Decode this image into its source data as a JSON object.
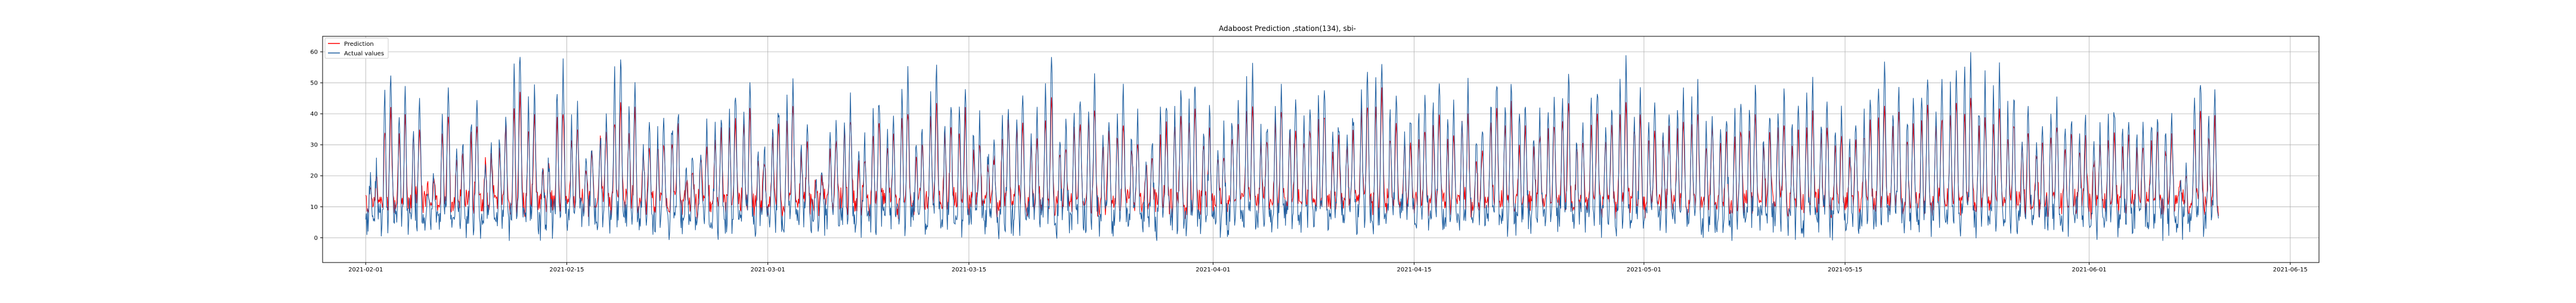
{
  "chart_data": {
    "type": "line",
    "title": "Adaboost Prediction ,station(134), sbi-",
    "xlabel": "",
    "ylabel": "",
    "x_range": [
      "2021-01-29",
      "2021-06-17"
    ],
    "x_start": "2021-02-01",
    "x_end": "2021-06-10",
    "ylim": [
      -8,
      65
    ],
    "grid": true,
    "legend_position": "top-left",
    "x_ticks": [
      "2021-02-01",
      "2021-02-15",
      "2021-03-01",
      "2021-03-15",
      "2021-04-01",
      "2021-04-15",
      "2021-05-01",
      "2021-05-15",
      "2021-06-01",
      "2021-06-15"
    ],
    "y_ticks": [
      0,
      10,
      20,
      30,
      40,
      50,
      60
    ],
    "series": [
      {
        "name": "Prediction",
        "color": "#ff0000"
      },
      {
        "name": "Actual values",
        "color": "#1f5fa0"
      }
    ],
    "daily_profile": {
      "description_values": "approximate daily peak (Actual values) per day from 2021-02-01",
      "actual_daily_peak": [
        22,
        52,
        45,
        42,
        20,
        48,
        30,
        45,
        30,
        38,
        62,
        48,
        25,
        55,
        42,
        30,
        40,
        60,
        48,
        35,
        38,
        42,
        25,
        35,
        40,
        46,
        48,
        30,
        42,
        50,
        36,
        20,
        38,
        44,
        30,
        45,
        40,
        52,
        35,
        55,
        42,
        48,
        38,
        30,
        42,
        46,
        40,
        58,
        35,
        45,
        50,
        40,
        46,
        38,
        30,
        44,
        48,
        52,
        40,
        34,
        46,
        56,
        38,
        50,
        44,
        42,
        48,
        38,
        40,
        56,
        60,
        46,
        38,
        44,
        50,
        42,
        48,
        36,
        52,
        50,
        44,
        40,
        46,
        54,
        38,
        50,
        42,
        56,
        48,
        44,
        40,
        46,
        50,
        42,
        38,
        44,
        48,
        40,
        46,
        42,
        50,
        44,
        40,
        36,
        46,
        58,
        50,
        44,
        52,
        48,
        56,
        60,
        50,
        54,
        46,
        40,
        36,
        44,
        40,
        38,
        34,
        42,
        40,
        38,
        42,
        40
      ],
      "prediction_daily_peak": [
        18,
        40,
        38,
        36,
        18,
        40,
        26,
        38,
        26,
        34,
        46,
        40,
        22,
        42,
        36,
        26,
        34,
        44,
        40,
        30,
        32,
        36,
        22,
        30,
        34,
        38,
        40,
        26,
        36,
        42,
        30,
        18,
        32,
        38,
        26,
        38,
        34,
        42,
        30,
        44,
        36,
        40,
        32,
        26,
        36,
        38,
        34,
        44,
        30,
        38,
        42,
        34,
        38,
        32,
        26,
        36,
        40,
        42,
        34,
        28,
        38,
        44,
        32,
        42,
        36,
        36,
        40,
        32,
        34,
        44,
        48,
        38,
        32,
        36,
        40,
        34,
        40,
        30,
        42,
        42,
        36,
        34,
        38,
        44,
        32,
        40,
        34,
        44,
        40,
        36,
        34,
        38,
        40,
        34,
        32,
        36,
        40,
        34,
        38,
        34,
        40,
        36,
        32,
        30,
        38,
        44,
        42,
        36,
        42,
        40,
        44,
        46,
        40,
        42,
        38,
        34,
        30,
        36,
        34,
        32,
        28,
        34,
        32,
        30,
        34,
        32
      ]
    }
  }
}
